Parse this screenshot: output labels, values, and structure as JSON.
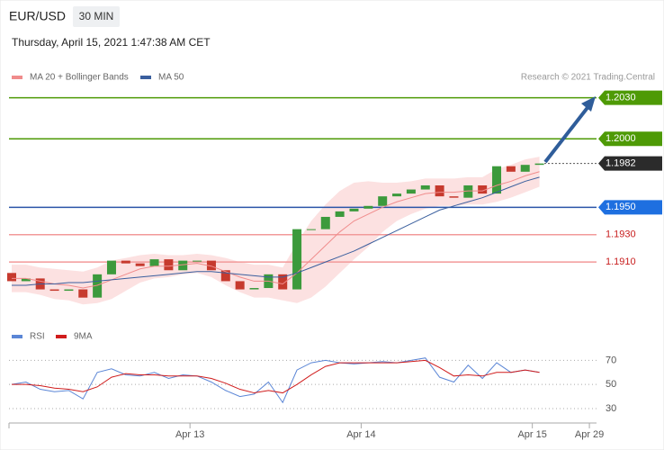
{
  "header": {
    "symbol": "EUR/USD",
    "interval": "30 MIN",
    "date": "Thursday, April 15, 2021 1:47:38 AM CET",
    "copyright": "Research © 2021 Trading.Central"
  },
  "chart_data": [
    {
      "type": "candlestick",
      "x": [
        -1,
        1,
        3,
        5,
        7,
        9,
        11,
        13,
        15,
        17,
        19,
        21,
        23,
        25,
        27,
        29,
        31,
        33,
        35,
        37,
        39,
        41,
        43,
        45,
        47,
        49,
        51,
        53,
        55,
        57,
        59,
        61,
        63,
        65,
        67,
        69,
        71,
        73
      ],
      "open": [
        1.1902,
        1.1896,
        1.1898,
        1.189,
        1.1889,
        1.189,
        1.1884,
        1.1901,
        1.1911,
        1.1909,
        1.1907,
        1.1912,
        1.1904,
        1.1911,
        1.1911,
        1.1904,
        1.1896,
        1.189,
        1.1891,
        1.1901,
        1.189,
        1.1934,
        1.1934,
        1.1943,
        1.1947,
        1.1949,
        1.1951,
        1.1958,
        1.196,
        1.1963,
        1.1966,
        1.1958,
        1.1957,
        1.1966,
        1.196,
        1.198,
        1.1976,
        1.1981
      ],
      "close": [
        1.1896,
        1.1898,
        1.189,
        1.1889,
        1.189,
        1.1884,
        1.1901,
        1.1911,
        1.1909,
        1.1907,
        1.1912,
        1.1904,
        1.1911,
        1.1911,
        1.1904,
        1.1896,
        1.189,
        1.1891,
        1.1901,
        1.189,
        1.1934,
        1.1934,
        1.1943,
        1.1947,
        1.1949,
        1.1951,
        1.1958,
        1.196,
        1.1963,
        1.1966,
        1.1958,
        1.1957,
        1.1966,
        1.196,
        1.198,
        1.1976,
        1.1981,
        1.1982
      ],
      "up_color": "#3c9a3c",
      "down_color": "#c63a2e",
      "series": [
        {
          "name": "MA 20 + Bollinger Bands",
          "color": "#f08c8c",
          "band_color": "#fbd9d9",
          "values": [
            1.1898,
            1.1898,
            1.1896,
            1.1894,
            1.1893,
            1.1891,
            1.1893,
            1.1897,
            1.1901,
            1.1905,
            1.1907,
            1.1907,
            1.1908,
            1.1909,
            1.1907,
            1.1903,
            1.1899,
            1.1896,
            1.1896,
            1.1894,
            1.1902,
            1.1912,
            1.1922,
            1.1932,
            1.194,
            1.1945,
            1.195,
            1.1954,
            1.1957,
            1.196,
            1.1961,
            1.1961,
            1.1962,
            1.1962,
            1.1966,
            1.1969,
            1.1973,
            1.1976
          ],
          "upper": [
            1.1908,
            1.1908,
            1.1906,
            1.1905,
            1.1904,
            1.1903,
            1.1906,
            1.1911,
            1.1913,
            1.1915,
            1.1916,
            1.1915,
            1.1915,
            1.1916,
            1.1915,
            1.1913,
            1.191,
            1.1908,
            1.1908,
            1.1906,
            1.1924,
            1.194,
            1.1952,
            1.1962,
            1.1968,
            1.1969,
            1.1968,
            1.1968,
            1.1969,
            1.1971,
            1.1971,
            1.1971,
            1.1972,
            1.1972,
            1.1978,
            1.1981,
            1.1985,
            1.1987
          ],
          "lower": [
            1.1888,
            1.1888,
            1.1886,
            1.1883,
            1.1882,
            1.1879,
            1.188,
            1.1883,
            1.1889,
            1.1895,
            1.1898,
            1.1899,
            1.1901,
            1.1902,
            1.1899,
            1.1893,
            1.1888,
            1.1884,
            1.1884,
            1.1882,
            1.188,
            1.1884,
            1.1892,
            1.1902,
            1.1912,
            1.1921,
            1.1932,
            1.194,
            1.1945,
            1.1949,
            1.1951,
            1.1951,
            1.1952,
            1.1952,
            1.1954,
            1.1957,
            1.1961,
            1.1965
          ]
        },
        {
          "name": "MA 50",
          "color": "#3a5f9e",
          "values": [
            1.1893,
            1.1893,
            1.1894,
            1.1894,
            1.1895,
            1.1895,
            1.1896,
            1.1897,
            1.1898,
            1.1899,
            1.19,
            1.1901,
            1.1902,
            1.1903,
            1.1903,
            1.1902,
            1.1901,
            1.19,
            1.1899,
            1.1899,
            1.1902,
            1.1906,
            1.191,
            1.1914,
            1.1918,
            1.1923,
            1.1928,
            1.1933,
            1.1938,
            1.1943,
            1.1948,
            1.1951,
            1.1954,
            1.1957,
            1.1961,
            1.1965,
            1.1969,
            1.1972
          ]
        }
      ],
      "levels": [
        {
          "value": 1.203,
          "label": "1.2030",
          "line_color": "#4e9a06",
          "box_color": "#4e9a06",
          "dashed": false
        },
        {
          "value": 1.2,
          "label": "1.2000",
          "line_color": "#4e9a06",
          "box_color": "#4e9a06",
          "dashed": false
        },
        {
          "value": 1.1982,
          "label": "1.1982",
          "line_color": "#555555",
          "box_color": "#2b2b2b",
          "dashed": true
        },
        {
          "value": 1.195,
          "label": "1.1950",
          "line_color": "#2a55a8",
          "box_color": "#1e6fe0",
          "dashed": false
        },
        {
          "value": 1.193,
          "label": "1.1930",
          "line_color": "#f29a9a",
          "box_color": null,
          "text_color": "#c81e1e",
          "dashed": false
        },
        {
          "value": 1.191,
          "label": "1.1910",
          "line_color": "#f29a9a",
          "box_color": null,
          "text_color": "#c81e1e",
          "dashed": false
        }
      ],
      "xlim": [
        -1,
        81
      ],
      "ylim": [
        1.1868,
        1.2039
      ]
    },
    {
      "type": "line",
      "x": [
        -1,
        1,
        3,
        5,
        7,
        9,
        11,
        13,
        15,
        17,
        19,
        21,
        23,
        25,
        27,
        29,
        31,
        33,
        35,
        37,
        39,
        41,
        43,
        45,
        47,
        49,
        51,
        53,
        55,
        57,
        59,
        61,
        63,
        65,
        67,
        69,
        71,
        73
      ],
      "series": [
        {
          "name": "RSI",
          "color": "#5b86d6",
          "values": [
            50,
            52,
            46,
            44,
            45,
            38,
            60,
            63,
            58,
            57,
            60,
            55,
            58,
            57,
            52,
            45,
            40,
            42,
            52,
            35,
            62,
            68,
            70,
            68,
            67,
            68,
            69,
            68,
            70,
            72,
            56,
            52,
            66,
            55,
            68,
            60,
            62,
            60
          ]
        },
        {
          "name": "9MA",
          "color": "#d01c1c",
          "values": [
            50,
            50,
            49,
            47,
            46,
            44,
            48,
            56,
            59,
            58,
            58,
            57,
            57,
            57,
            55,
            51,
            46,
            43,
            45,
            43,
            50,
            58,
            65,
            68,
            68,
            68,
            68,
            68,
            69,
            70,
            64,
            57,
            58,
            57,
            60,
            60,
            62,
            60
          ]
        }
      ],
      "xlim": [
        -1,
        81
      ],
      "ylim": [
        21,
        83
      ],
      "yticks": [
        30,
        50,
        70
      ],
      "xticks": [
        {
          "value": 24,
          "label": "Apr 13"
        },
        {
          "value": 48,
          "label": "Apr 14"
        },
        {
          "value": 72,
          "label": "Apr 15"
        },
        {
          "value": 80,
          "label": "Apr 29"
        }
      ]
    }
  ]
}
